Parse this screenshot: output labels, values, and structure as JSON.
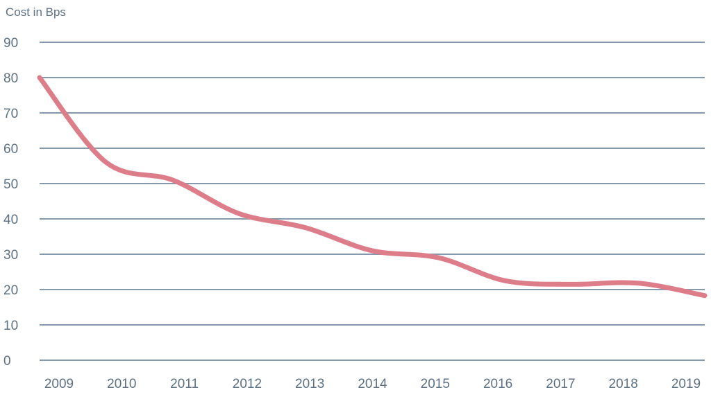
{
  "chart_data": {
    "type": "line",
    "title": "Cost in Bps",
    "categories": [
      "2009",
      "2010",
      "2011",
      "2012",
      "2013",
      "2014",
      "2015",
      "2016",
      "2017",
      "2018",
      "2019"
    ],
    "series": [
      {
        "name": "Cost in Bps",
        "values": [
          80,
          56,
          51,
          41.5,
          37.5,
          31,
          29,
          22.5,
          21.5,
          21.8,
          18.3
        ]
      }
    ],
    "xlabel": "",
    "ylabel": "Cost in Bps",
    "ylim": [
      0,
      90
    ],
    "ytick_step": 10,
    "yticks": [
      0,
      10,
      20,
      30,
      40,
      50,
      60,
      70,
      80,
      90
    ],
    "grid": "horizontal",
    "legend_position": "none",
    "line_color": "#de7d8a",
    "grid_color": "#8599ac",
    "text_color": "#5c7183",
    "background_color": "#ffffff"
  }
}
